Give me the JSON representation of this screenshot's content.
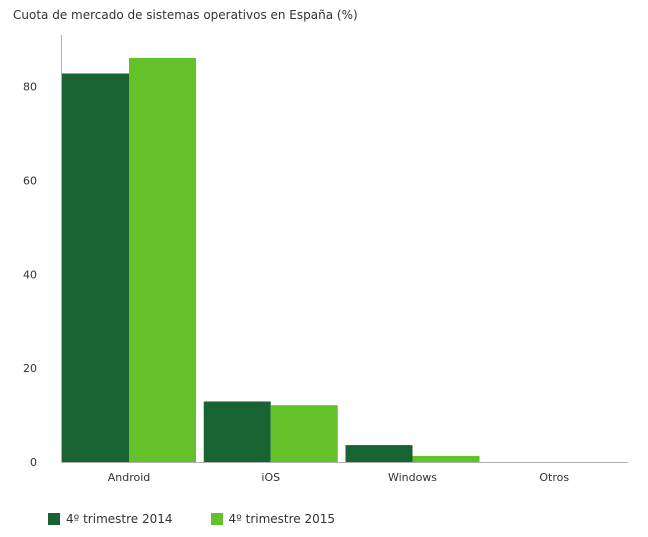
{
  "chart_data": {
    "type": "bar",
    "title": "Cuota de mercado de sistemas operativos en España (%)",
    "xlabel": "",
    "ylabel": "",
    "categories": [
      "Android",
      "iOS",
      "Windows",
      "Otros"
    ],
    "series": [
      {
        "name": "4º trimestre 2014",
        "color": "#186331",
        "values": [
          82.8,
          12.9,
          3.6,
          0.0
        ]
      },
      {
        "name": "4º trimestre 2015",
        "color": "#63c12a",
        "values": [
          86.1,
          12.1,
          1.3,
          0.0
        ]
      }
    ],
    "ylim": [
      0,
      91
    ],
    "yticks": [
      0,
      20,
      40,
      60,
      80
    ],
    "grid": false,
    "legend_position": "bottom-left"
  }
}
